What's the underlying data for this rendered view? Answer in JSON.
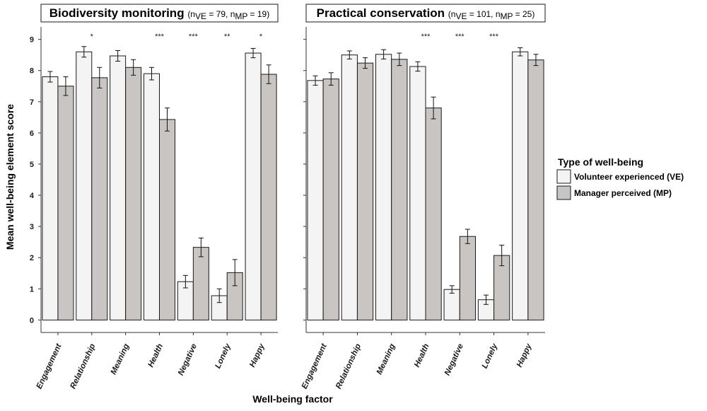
{
  "chart_data": [
    {
      "type": "bar",
      "title": "Biodiversity monitoring",
      "n_ve": "79",
      "n_mp": "19",
      "categories": [
        "Engagement",
        "Relationship",
        "Meaning",
        "Health",
        "Negative",
        "Lonely",
        "Happy"
      ],
      "series": [
        {
          "name": "Volunteer experienced (VE)",
          "values": [
            7.8,
            8.6,
            8.47,
            7.9,
            1.23,
            0.78,
            8.56
          ],
          "errors": [
            0.17,
            0.17,
            0.17,
            0.2,
            0.2,
            0.22,
            0.15
          ]
        },
        {
          "name": "Manager perceived (MP)",
          "values": [
            7.5,
            7.77,
            8.1,
            6.43,
            2.33,
            1.52,
            7.88
          ],
          "errors": [
            0.3,
            0.33,
            0.25,
            0.37,
            0.3,
            0.42,
            0.3
          ]
        }
      ],
      "significance": [
        "",
        "*",
        "",
        "***",
        "***",
        "**",
        "*"
      ],
      "ylim": [
        -0.4,
        9.4
      ],
      "yticks": [
        0,
        1,
        2,
        3,
        4,
        5,
        6,
        7,
        8,
        9
      ]
    },
    {
      "type": "bar",
      "title": "Practical conservation",
      "n_ve": "101",
      "n_mp": "25",
      "categories": [
        "Engagement",
        "Relationship",
        "Meaning",
        "Health",
        "Negative",
        "Lonely",
        "Happy"
      ],
      "series": [
        {
          "name": "Volunteer experienced (VE)",
          "values": [
            7.68,
            8.5,
            8.52,
            8.13,
            0.98,
            0.65,
            8.6
          ],
          "errors": [
            0.15,
            0.13,
            0.15,
            0.15,
            0.12,
            0.15,
            0.13
          ]
        },
        {
          "name": "Manager perceived (MP)",
          "values": [
            7.73,
            8.24,
            8.36,
            6.8,
            2.68,
            2.07,
            8.34
          ],
          "errors": [
            0.2,
            0.17,
            0.2,
            0.35,
            0.23,
            0.33,
            0.18
          ]
        }
      ],
      "significance": [
        "",
        "",
        "",
        "***",
        "***",
        "***",
        ""
      ],
      "ylim": [
        -0.4,
        9.4
      ],
      "yticks": [
        0,
        1,
        2,
        3,
        4,
        5,
        6,
        7,
        8,
        9
      ]
    }
  ],
  "ylabel": "Mean well-being element score",
  "xlabel": "Well-being factor",
  "legend": {
    "title": "Type of well-being",
    "items": [
      "Volunteer experienced (VE)",
      "Manager perceived (MP)"
    ]
  },
  "colors": {
    "ve": "#f4f4f4",
    "mp": "#c9c5c2",
    "stroke": "#1a1a1a",
    "axis": "#333333"
  }
}
